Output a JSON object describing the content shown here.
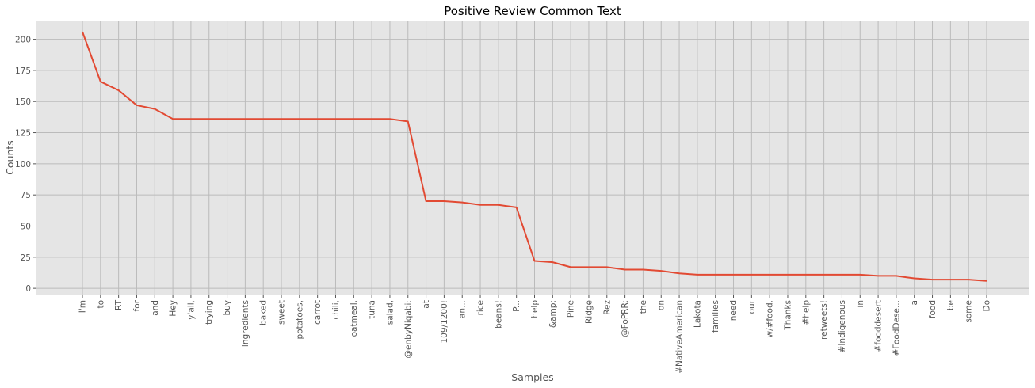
{
  "chart_data": {
    "type": "line",
    "title": "Positive Review Common Text",
    "xlabel": "Samples",
    "ylabel": "Counts",
    "ylim": [
      -5,
      215
    ],
    "yticks": [
      0,
      25,
      50,
      75,
      100,
      125,
      150,
      175,
      200
    ],
    "grid": true,
    "colors": {
      "line": "#E24A33",
      "plot_bg": "#E5E5E5",
      "grid": "#BBBBBB",
      "text": "#555555"
    },
    "categories": [
      "I'm",
      "to",
      "RT",
      "for",
      "and",
      "Hey",
      "y'all,",
      "trying",
      "buy",
      "ingredients",
      "baked",
      "sweet",
      "potatoes,",
      "carrot",
      "chili,",
      "oatmeal,",
      "tuna",
      "salad,",
      "@enbyNiqabi:",
      "at",
      "109/1200!",
      "an...",
      "rice",
      "beans!",
      "P...",
      "help",
      "&amp;",
      "Pine",
      "Ridge",
      "Rez",
      "@FoPRR:",
      "the",
      "on",
      "#NativeAmerican",
      "Lakota",
      "families",
      "need",
      "our",
      "w/#food.",
      "Thanks",
      "#help",
      "retweets!",
      "#Indigenous",
      "in",
      "#fooddesert",
      "#FoodDese...",
      "a",
      "food",
      "be",
      "some",
      "Do"
    ],
    "values": [
      206,
      166,
      159,
      147,
      144,
      136,
      136,
      136,
      136,
      136,
      136,
      136,
      136,
      136,
      136,
      136,
      136,
      136,
      134,
      70,
      70,
      69,
      67,
      67,
      65,
      22,
      21,
      17,
      17,
      17,
      15,
      15,
      14,
      12,
      11,
      11,
      11,
      11,
      11,
      11,
      11,
      11,
      11,
      11,
      10,
      10,
      8,
      7,
      7,
      7,
      6
    ]
  }
}
